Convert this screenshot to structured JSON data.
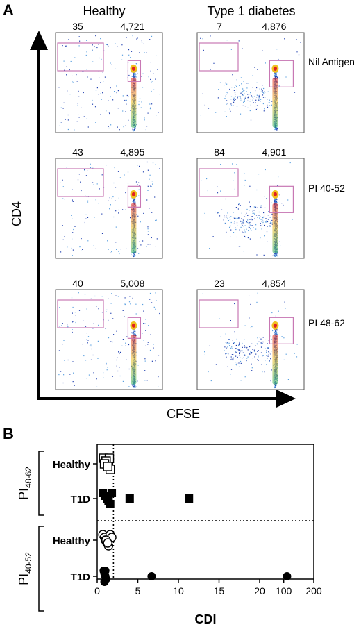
{
  "panel_a": {
    "letter": "A",
    "col_titles": [
      "Healthy",
      "Type 1 diabetes"
    ],
    "row_labels": [
      "Nil Antigen",
      "PI 40-52",
      "PI 48-62"
    ],
    "x_axis_label": "CFSE",
    "y_axis_label": "CD4",
    "gate_counts": [
      [
        [
          "35",
          "4,721"
        ],
        [
          "7",
          "4,876"
        ]
      ],
      [
        [
          "43",
          "4,895"
        ],
        [
          "84",
          "4,901"
        ]
      ],
      [
        [
          "40",
          "5,008"
        ],
        [
          "23",
          "4,854"
        ]
      ]
    ],
    "gate_color": "#c878b4"
  },
  "panel_b": {
    "letter": "B",
    "group_labels": [
      {
        "main": "PI",
        "sub": "48-62"
      },
      {
        "main": "PI",
        "sub": "40-52"
      }
    ]
  },
  "chart_data": {
    "type": "scatter",
    "xlabel": "CDI",
    "x_ticks": [
      "0",
      "5",
      "10",
      "15",
      "20",
      "100",
      "200"
    ],
    "x_break_note": "axis compresses 20-200",
    "threshold_x": 2,
    "categories": [
      "Healthy",
      "T1D",
      "Healthy",
      "T1D"
    ],
    "series": [
      {
        "group": "PI 48-62",
        "category": "Healthy",
        "marker": "open-square",
        "values": [
          0.8,
          1.0,
          1.2,
          1.4,
          1.6,
          1.5,
          1.1,
          0.9,
          1.3
        ]
      },
      {
        "group": "PI 48-62",
        "category": "T1D",
        "marker": "filled-square",
        "values": [
          0.7,
          1.0,
          1.2,
          1.4,
          1.6,
          1.8,
          1.3,
          4.0,
          11.3
        ]
      },
      {
        "group": "PI 40-52",
        "category": "Healthy",
        "marker": "open-circle",
        "values": [
          0.7,
          0.9,
          1.0,
          1.2,
          1.4,
          1.6,
          1.8,
          1.1,
          1.3
        ]
      },
      {
        "group": "PI 40-52",
        "category": "T1D",
        "marker": "filled-circle",
        "values": [
          0.8,
          0.9,
          1.0,
          1.1,
          0.9,
          1.0,
          6.7,
          111
        ]
      }
    ]
  }
}
